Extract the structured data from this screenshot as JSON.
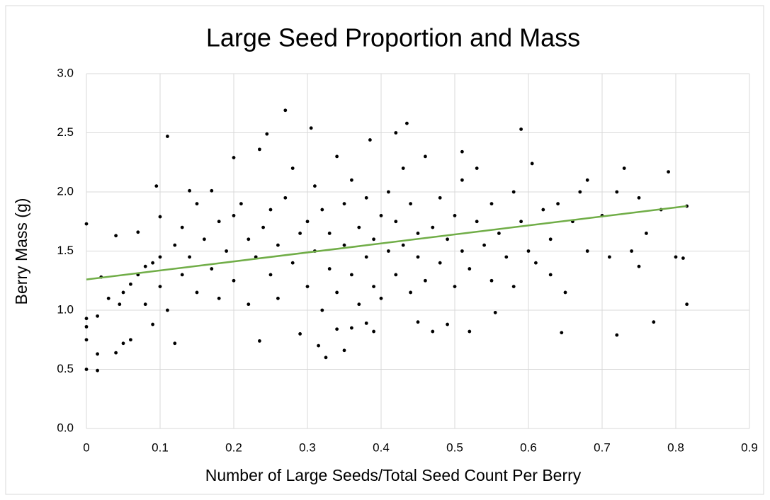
{
  "chart_data": {
    "type": "scatter",
    "title": "Large Seed Proportion and Mass",
    "x_label": "Number of Large Seeds/Total Seed Count Per Berry",
    "y_label": "Berry Mass (g)",
    "color": "#000000",
    "x": [
      0,
      0,
      0.015,
      0,
      0,
      0,
      0.015,
      0.015,
      0.02,
      0.04,
      0.04,
      0.045,
      0.05,
      0.06,
      0.07,
      0.095,
      0.1,
      0.11,
      0.12,
      0.14,
      0.17,
      0.2,
      0.235,
      0.245,
      0.235,
      0.27,
      0.29,
      0.305,
      0.315,
      0.325,
      0.35,
      0.385,
      0.42,
      0.435,
      0.51,
      0.59,
      0.605,
      0.73,
      0.79,
      0.815,
      0.815,
      0.81,
      0.77,
      0.72,
      0.645,
      0.555,
      0.52,
      0.47,
      0.49,
      0.45,
      0.39,
      0.38,
      0.36,
      0.34,
      0.03,
      0.05,
      0.06,
      0.07,
      0.08,
      0.09,
      0.1,
      0.1,
      0.08,
      0.09,
      0.11,
      0.12,
      0.13,
      0.13,
      0.14,
      0.15,
      0.15,
      0.16,
      0.17,
      0.18,
      0.18,
      0.19,
      0.2,
      0.2,
      0.21,
      0.22,
      0.22,
      0.23,
      0.24,
      0.25,
      0.25,
      0.26,
      0.26,
      0.27,
      0.28,
      0.28,
      0.29,
      0.3,
      0.3,
      0.31,
      0.31,
      0.32,
      0.32,
      0.33,
      0.33,
      0.34,
      0.34,
      0.35,
      0.35,
      0.36,
      0.36,
      0.37,
      0.37,
      0.38,
      0.38,
      0.39,
      0.39,
      0.4,
      0.4,
      0.41,
      0.41,
      0.42,
      0.42,
      0.43,
      0.43,
      0.44,
      0.44,
      0.45,
      0.45,
      0.46,
      0.46,
      0.47,
      0.48,
      0.48,
      0.49,
      0.5,
      0.5,
      0.51,
      0.51,
      0.52,
      0.53,
      0.53,
      0.54,
      0.55,
      0.55,
      0.56,
      0.57,
      0.58,
      0.58,
      0.59,
      0.6,
      0.61,
      0.62,
      0.63,
      0.63,
      0.64,
      0.65,
      0.66,
      0.67,
      0.68,
      0.68,
      0.7,
      0.71,
      0.72,
      0.74,
      0.75,
      0.75,
      0.76,
      0.78,
      0.8
    ],
    "values": [
      1.73,
      0.5,
      0.49,
      0.75,
      0.86,
      0.93,
      0.63,
      0.95,
      1.28,
      0.64,
      1.63,
      1.05,
      0.72,
      0.75,
      1.66,
      2.05,
      1.79,
      2.47,
      0.72,
      2.01,
      2.01,
      2.29,
      2.36,
      2.49,
      0.74,
      2.69,
      0.8,
      2.54,
      0.7,
      0.6,
      0.66,
      2.44,
      2.5,
      2.58,
      2.34,
      2.53,
      2.24,
      2.2,
      2.17,
      1.88,
      1.05,
      1.44,
      0.9,
      0.79,
      0.81,
      0.98,
      0.82,
      0.82,
      0.88,
      0.9,
      0.82,
      0.89,
      0.85,
      0.84,
      1.1,
      1.15,
      1.22,
      1.3,
      1.37,
      1.4,
      1.45,
      1.2,
      1.05,
      0.88,
      1.0,
      1.55,
      1.7,
      1.3,
      1.45,
      1.15,
      1.9,
      1.6,
      1.35,
      1.75,
      1.1,
      1.5,
      1.8,
      1.25,
      1.9,
      1.6,
      1.05,
      1.45,
      1.7,
      1.3,
      1.85,
      1.55,
      1.1,
      1.95,
      1.4,
      2.2,
      1.65,
      1.2,
      1.75,
      1.5,
      2.05,
      1.0,
      1.85,
      1.35,
      1.65,
      2.3,
      1.15,
      1.55,
      1.9,
      1.3,
      2.1,
      1.7,
      1.05,
      1.45,
      1.95,
      1.2,
      1.6,
      1.8,
      1.1,
      1.5,
      2.0,
      1.3,
      1.75,
      1.55,
      2.2,
      1.15,
      1.9,
      1.45,
      1.65,
      1.25,
      2.3,
      1.7,
      1.4,
      1.95,
      1.6,
      1.2,
      1.8,
      1.5,
      2.1,
      1.35,
      1.75,
      2.2,
      1.55,
      1.25,
      1.9,
      1.65,
      1.45,
      2.0,
      1.2,
      1.75,
      1.5,
      1.4,
      1.85,
      1.6,
      1.3,
      1.9,
      1.15,
      1.75,
      2.0,
      1.5,
      2.1,
      1.8,
      1.45,
      2.0,
      1.5,
      1.95,
      1.37,
      1.65,
      1.85,
      1.45
    ],
    "trendline": {
      "x": [
        0,
        0.815
      ],
      "y": [
        1.26,
        1.88
      ],
      "color": "#70ad47"
    },
    "xlim": [
      0,
      0.9
    ],
    "xticks": [
      0,
      0.1,
      0.2,
      0.3,
      0.4,
      0.5,
      0.6,
      0.7,
      0.8,
      0.9
    ],
    "ylim": [
      0,
      3
    ],
    "yticks": [
      {
        "value": 0,
        "label": "0.0"
      },
      0.5,
      {
        "value": 1,
        "label": "1.0"
      },
      1.5,
      {
        "value": 2,
        "label": "2.0"
      },
      2.5,
      {
        "value": 3,
        "label": "3.0"
      }
    ],
    "grid": true
  }
}
